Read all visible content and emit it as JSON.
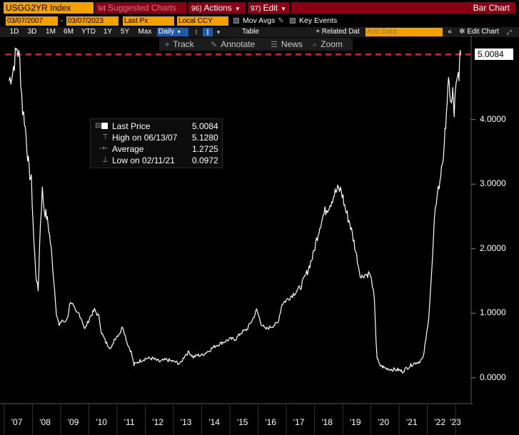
{
  "header": {
    "ticker": "USGG2YR Index",
    "suggested": {
      "num": "94",
      "label": "Suggested Charts"
    },
    "actions": {
      "num": "96)",
      "label": "Actions"
    },
    "edit": {
      "num": "97)",
      "label": "Edit"
    },
    "title": "Bar Chart"
  },
  "controls": {
    "start_date": "03/07/2007",
    "end_date": "03/07/2023",
    "field": "Last Px",
    "currency": "Local CCY",
    "mov_avgs": "Mov Avgs",
    "key_events": "Key Events"
  },
  "periods": [
    "1D",
    "3D",
    "1M",
    "6M",
    "YTD",
    "1Y",
    "5Y",
    "Max"
  ],
  "frequency": "Daily",
  "table_label": "Table",
  "related_data": "+ Related Dat",
  "add_data_placeholder": "Add Data",
  "edit_chart": "Edit Chart",
  "tools": [
    {
      "icon": "crosshair-icon",
      "label": "Track"
    },
    {
      "icon": "pencil-icon",
      "label": "Annotate"
    },
    {
      "icon": "news-icon",
      "label": "News"
    },
    {
      "icon": "magnifier-icon",
      "label": "Zoom"
    }
  ],
  "legend": {
    "last_price": {
      "label": "Last Price",
      "value": "5.0084"
    },
    "high": {
      "label": "High on 06/13/07",
      "value": "5.1280"
    },
    "average": {
      "label": "Average",
      "value": "1.2725"
    },
    "low": {
      "label": "Low on 02/11/21",
      "value": "0.0972"
    }
  },
  "colors": {
    "accent": "#f2a100",
    "menu": "#8a0014",
    "selected": "#1e5aa8",
    "reference_line": "#e8212b"
  },
  "chart_data": {
    "type": "line",
    "series": [
      {
        "name": "Last Price",
        "x": [
          2007.17,
          2007.3,
          2007.45,
          2007.55,
          2007.65,
          2007.72,
          2007.8,
          2007.88,
          2007.96,
          2008.05,
          2008.12,
          2008.2,
          2008.28,
          2008.35,
          2008.42,
          2008.5,
          2008.58,
          2008.66,
          2008.75,
          2008.85,
          2008.95,
          2009.05,
          2009.15,
          2009.25,
          2009.35,
          2009.45,
          2009.55,
          2009.65,
          2009.75,
          2009.85,
          2009.95,
          2010.05,
          2010.2,
          2010.35,
          2010.45,
          2010.6,
          2010.8,
          2010.9,
          2011.0,
          2011.1,
          2011.2,
          2011.35,
          2011.5,
          2011.6,
          2011.75,
          2012.0,
          2012.25,
          2012.5,
          2012.75,
          2013.0,
          2013.25,
          2013.4,
          2013.55,
          2013.7,
          2013.85,
          2014.0,
          2014.25,
          2014.5,
          2014.75,
          2015.0,
          2015.2,
          2015.4,
          2015.6,
          2015.8,
          2015.95,
          2016.1,
          2016.25,
          2016.5,
          2016.7,
          2016.85,
          2017.0,
          2017.25,
          2017.5,
          2017.75,
          2017.95,
          2018.1,
          2018.25,
          2018.4,
          2018.55,
          2018.7,
          2018.85,
          2018.95,
          2019.1,
          2019.25,
          2019.4,
          2019.55,
          2019.65,
          2019.75,
          2019.85,
          2019.95,
          2020.05,
          2020.12,
          2020.18,
          2020.22,
          2020.3,
          2020.5,
          2020.75,
          2021.0,
          2021.11,
          2021.3,
          2021.5,
          2021.7,
          2021.85,
          2021.95,
          2022.05,
          2022.15,
          2022.25,
          2022.35,
          2022.45,
          2022.5,
          2022.6,
          2022.65,
          2022.7,
          2022.75,
          2022.8,
          2022.85,
          2022.9,
          2022.95,
          2023.0,
          2023.05,
          2023.1,
          2023.14,
          2023.18
        ],
        "y": [
          4.6,
          4.75,
          5.128,
          4.9,
          4.15,
          4.0,
          3.6,
          3.2,
          3.05,
          2.1,
          1.6,
          1.35,
          2.4,
          2.9,
          2.6,
          2.5,
          2.3,
          2.0,
          1.55,
          1.0,
          0.8,
          0.9,
          0.85,
          0.95,
          1.2,
          1.1,
          1.0,
          1.0,
          0.9,
          0.75,
          0.85,
          0.95,
          1.05,
          0.95,
          0.7,
          0.55,
          0.45,
          0.6,
          0.65,
          0.7,
          0.8,
          0.55,
          0.4,
          0.2,
          0.25,
          0.3,
          0.3,
          0.25,
          0.28,
          0.25,
          0.22,
          0.35,
          0.4,
          0.32,
          0.35,
          0.35,
          0.42,
          0.5,
          0.55,
          0.6,
          0.6,
          0.7,
          0.75,
          0.9,
          1.05,
          0.85,
          0.75,
          0.8,
          0.85,
          1.15,
          1.2,
          1.3,
          1.4,
          1.65,
          1.9,
          2.2,
          2.45,
          2.6,
          2.7,
          2.85,
          2.92,
          2.9,
          2.6,
          2.4,
          2.1,
          1.75,
          1.55,
          1.6,
          1.6,
          1.62,
          1.45,
          1.2,
          0.6,
          0.3,
          0.2,
          0.15,
          0.13,
          0.12,
          0.0972,
          0.16,
          0.22,
          0.25,
          0.3,
          0.6,
          0.95,
          1.6,
          2.4,
          2.9,
          3.0,
          3.3,
          3.5,
          4.0,
          4.3,
          4.5,
          4.45,
          4.2,
          4.4,
          4.1,
          4.4,
          4.55,
          4.7,
          4.8,
          5.0084
        ]
      }
    ],
    "xlim": [
      2007.0,
      2023.3
    ],
    "ylim": [
      -0.4,
      5.3
    ],
    "x_tick_labels": [
      "'07",
      "'08",
      "'09",
      "'10",
      "'11",
      "'12",
      "'13",
      "'14",
      "'15",
      "'16",
      "'17",
      "'18",
      "'19",
      "'20",
      "'21",
      "'22",
      "'23"
    ],
    "y_tick_labels": [
      "0.0000",
      "1.0000",
      "2.0000",
      "3.0000",
      "4.0000"
    ],
    "last_value_label": "5.0084",
    "grid": false,
    "reference_line": {
      "y": 5.0084,
      "style": "dashed"
    }
  }
}
